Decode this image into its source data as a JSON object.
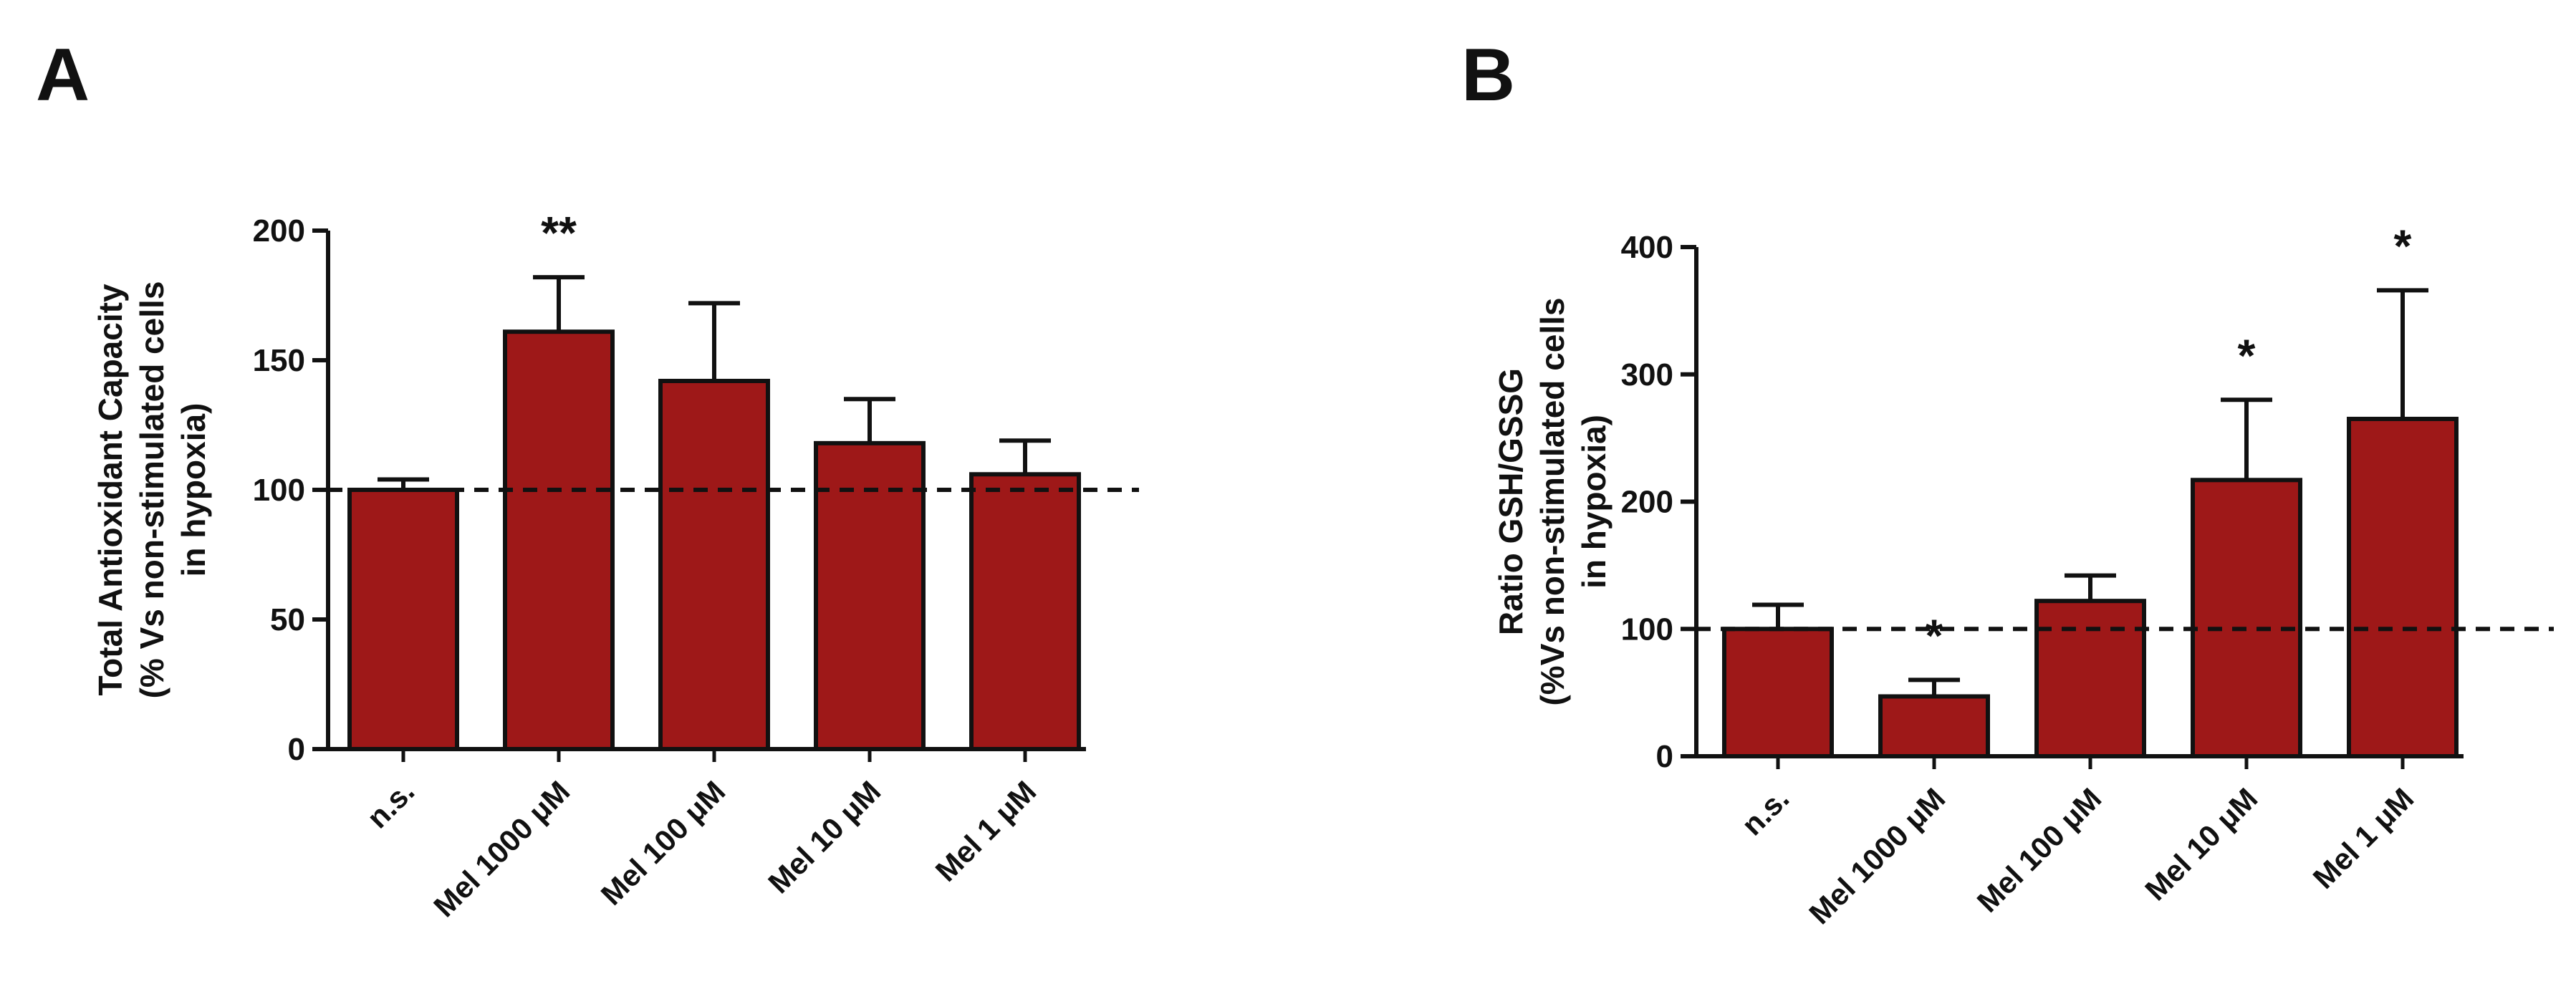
{
  "colors": {
    "bar": "#9E1818",
    "stroke": "#111111",
    "background": "#ffffff"
  },
  "chart_data": [
    {
      "panel": "A",
      "type": "bar",
      "title": "",
      "ylabel_lines": [
        "Total Antioxidant Capacity",
        "(% Vs non-stimulated cells",
        "in hypoxia)"
      ],
      "xlabel": "",
      "categories": [
        "n.s.",
        "Mel 1000 μM",
        "Mel 100 μM",
        "Mel 10 μM",
        "Mel 1 μM"
      ],
      "values": [
        100,
        161,
        142,
        118,
        106
      ],
      "errors": [
        4,
        21,
        30,
        17,
        13
      ],
      "significance": [
        "",
        "**",
        "",
        "",
        ""
      ],
      "ylim": [
        0,
        200
      ],
      "yticks": [
        0,
        50,
        100,
        150,
        200
      ],
      "reference_line": 100,
      "grid": false,
      "legend": "none"
    },
    {
      "panel": "B",
      "type": "bar",
      "title": "",
      "ylabel_lines": [
        "Ratio GSH/GSSG",
        "(%Vs non-stimulated cells",
        "in hypoxia)"
      ],
      "xlabel": "",
      "categories": [
        "n.s.",
        "Mel 1000 μM",
        "Mel 100 μM",
        "Mel 10 μM",
        "Mel 1 μM"
      ],
      "values": [
        100,
        47,
        122,
        217,
        265
      ],
      "errors": [
        19,
        13,
        20,
        63,
        101
      ],
      "significance": [
        "",
        "*",
        "",
        "*",
        "*"
      ],
      "ylim": [
        0,
        400
      ],
      "yticks": [
        0,
        100,
        200,
        300,
        400
      ],
      "reference_line": 100,
      "grid": false,
      "legend": "none"
    }
  ]
}
